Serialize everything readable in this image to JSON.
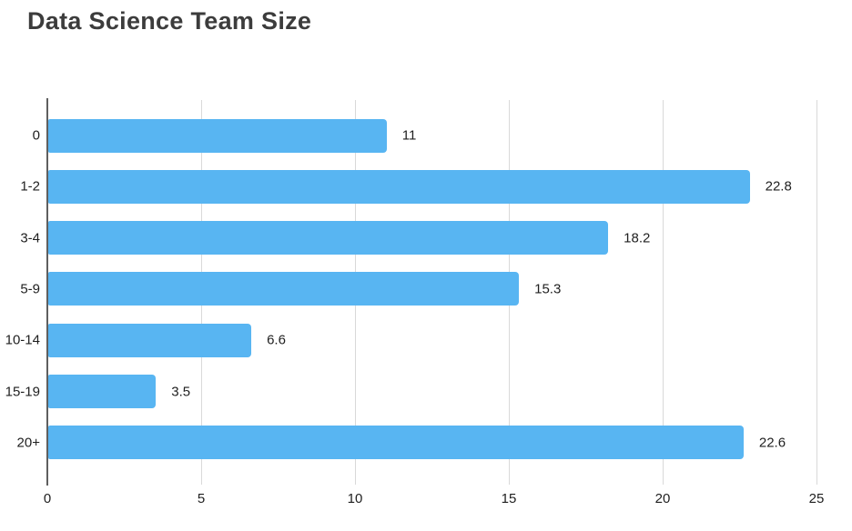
{
  "chart_data": {
    "type": "bar",
    "orientation": "horizontal",
    "title": "Data Science Team Size",
    "categories": [
      "0",
      "1-2",
      "3-4",
      "5-9",
      "10-14",
      "15-19",
      "20+"
    ],
    "values": [
      11,
      22.8,
      18.2,
      15.3,
      6.6,
      3.5,
      22.6
    ],
    "value_labels": [
      "11",
      "22.8",
      "18.2",
      "15.3",
      "6.6",
      "3.5",
      "22.6"
    ],
    "xlabel": "",
    "ylabel": "",
    "xlim": [
      0,
      25
    ],
    "x_ticks": [
      0,
      5,
      10,
      15,
      20,
      25
    ],
    "x_tick_labels": [
      "0",
      "5",
      "10",
      "15",
      "20",
      "25"
    ],
    "grid": true,
    "legend": "none",
    "colors": {
      "bar": "#58b5f2",
      "gridline": "#d9d9d9",
      "axis_line": "#5f5f5f",
      "tick_text": "#1f1f1f",
      "title_text": "#3c3c3c",
      "background": "#ffffff"
    }
  }
}
